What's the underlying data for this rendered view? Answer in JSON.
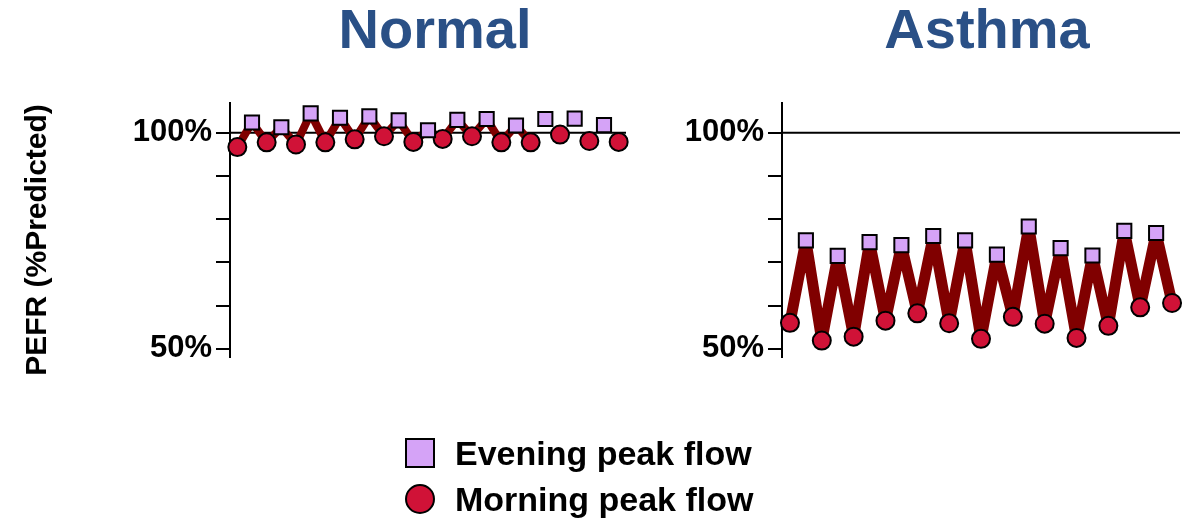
{
  "chart_data": [
    {
      "type": "line",
      "title": "Normal",
      "ylabel": "PEFR (%Predicted)",
      "categories": [
        null,
        null,
        null,
        null,
        null,
        null,
        null,
        null,
        null,
        null,
        null,
        null,
        null,
        null,
        null,
        null,
        null,
        null,
        null,
        null,
        null,
        null,
        null,
        null,
        null,
        null,
        null
      ],
      "ylim": [
        48,
        107
      ],
      "yticks": [
        {
          "value": 50,
          "label": "50%"
        },
        {
          "value": 60,
          "label": null
        },
        {
          "value": 70,
          "label": null
        },
        {
          "value": 80,
          "label": null
        },
        {
          "value": 90,
          "label": null
        },
        {
          "value": 100,
          "label": "100%"
        }
      ],
      "tick_labels": "y",
      "legend": "bottom",
      "ref_lines": [
        {
          "axis": "y",
          "value": 100,
          "color": "#000000"
        }
      ],
      "series": [
        {
          "type": "line",
          "color": "#800000",
          "marker": "none",
          "values": [
            96.7,
            102.4,
            97.8,
            101.3,
            97.3,
            104.5,
            97.8,
            103.5,
            98.5,
            103.8,
            99.2,
            102.9,
            97.9,
            100.6,
            98.6,
            103.0,
            99.2,
            103.2,
            97.8,
            101.7,
            97.8,
            null,
            null,
            null,
            null,
            null,
            null
          ]
        },
        {
          "type": "scatter",
          "name": "Evening peak flow",
          "color": "#d5a3f7",
          "marker": "square",
          "values": [
            null,
            102.4,
            null,
            101.3,
            null,
            104.5,
            null,
            103.5,
            null,
            103.8,
            null,
            102.9,
            null,
            100.6,
            null,
            103.0,
            null,
            103.2,
            null,
            101.7,
            null,
            103.2,
            null,
            103.3,
            null,
            101.8,
            null
          ]
        },
        {
          "type": "scatter",
          "name": "Morning peak flow",
          "color": "#d01237",
          "marker": "circle",
          "values": [
            96.7,
            null,
            97.8,
            null,
            97.3,
            null,
            97.8,
            null,
            98.5,
            null,
            99.2,
            null,
            97.9,
            null,
            98.6,
            null,
            99.2,
            null,
            97.8,
            null,
            97.8,
            null,
            99.6,
            null,
            98.1,
            null,
            97.9
          ]
        }
      ]
    },
    {
      "type": "line",
      "title": "Asthma",
      "categories": [
        null,
        null,
        null,
        null,
        null,
        null,
        null,
        null,
        null,
        null,
        null,
        null,
        null,
        null,
        null,
        null,
        null,
        null,
        null,
        null,
        null,
        null,
        null,
        null,
        null
      ],
      "ylim": [
        48,
        107
      ],
      "yticks": [
        {
          "value": 50,
          "label": "50%"
        },
        {
          "value": 60,
          "label": null
        },
        {
          "value": 70,
          "label": null
        },
        {
          "value": 80,
          "label": null
        },
        {
          "value": 90,
          "label": null
        },
        {
          "value": 100,
          "label": "100%"
        }
      ],
      "tick_labels": "y",
      "ref_lines": [
        {
          "axis": "y",
          "value": 100,
          "color": "#000000"
        }
      ],
      "series": [
        {
          "type": "line",
          "color": "#800000",
          "marker": "none",
          "values": [
            56.0,
            75.1,
            51.9,
            71.5,
            52.8,
            74.7,
            56.5,
            74.0,
            58.2,
            76.1,
            55.9,
            75.1,
            52.3,
            71.8,
            57.4,
            78.3,
            55.8,
            73.3,
            52.5,
            71.6,
            55.3,
            77.3,
            59.6,
            76.8,
            60.6
          ]
        },
        {
          "type": "scatter",
          "color": "#d5a3f7",
          "marker": "square",
          "values": [
            null,
            75.1,
            null,
            71.5,
            null,
            74.7,
            null,
            74.0,
            null,
            76.1,
            null,
            75.1,
            null,
            71.8,
            null,
            78.3,
            null,
            73.3,
            null,
            71.6,
            null,
            77.3,
            null,
            76.8,
            null
          ]
        },
        {
          "type": "scatter",
          "color": "#d01237",
          "marker": "circle",
          "values": [
            56.0,
            null,
            51.9,
            null,
            52.8,
            null,
            56.5,
            null,
            58.2,
            null,
            55.9,
            null,
            52.3,
            null,
            57.4,
            null,
            55.8,
            null,
            52.5,
            null,
            55.3,
            null,
            59.6,
            null,
            60.6
          ]
        }
      ]
    }
  ]
}
